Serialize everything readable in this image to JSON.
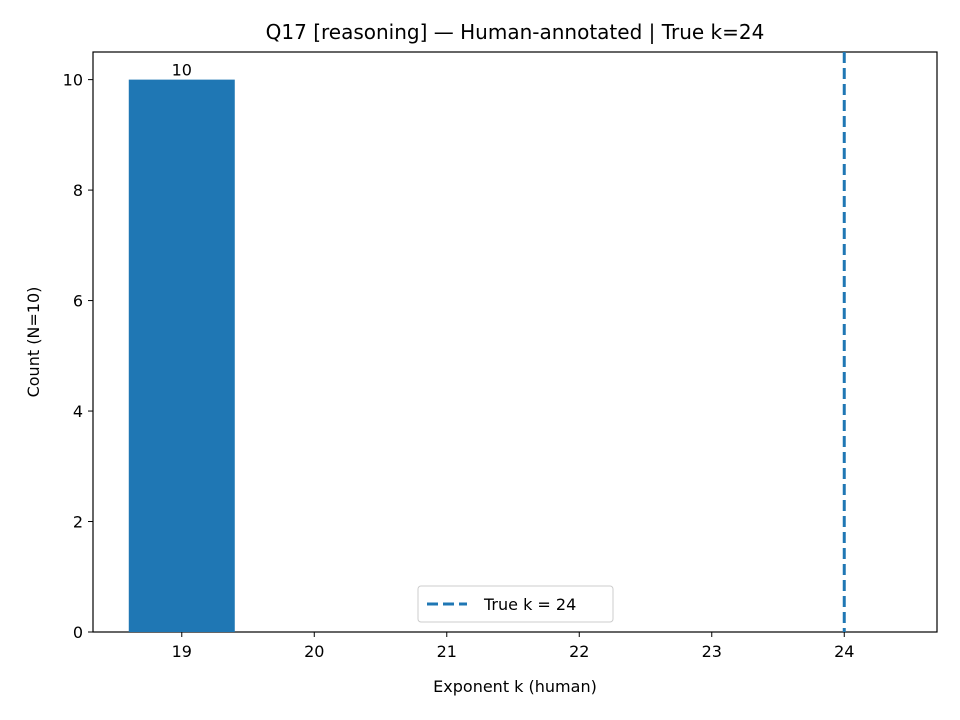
{
  "chart_data": {
    "type": "bar",
    "title": "Q17 [reasoning] — Human-annotated | True k=24",
    "xlabel": "Exponent k (human)",
    "ylabel": "Count (N=10)",
    "x_ticks": [
      "19",
      "20",
      "21",
      "22",
      "23",
      "24"
    ],
    "y_ticks": [
      "0",
      "2",
      "4",
      "6",
      "8",
      "10"
    ],
    "xlim": [
      18.33,
      24.7
    ],
    "ylim": [
      0,
      10.5
    ],
    "bars": [
      {
        "x": 19,
        "value": 10,
        "label": "10"
      }
    ],
    "bar_width": 0.8,
    "bar_color": "#1f77b4",
    "reference_line": {
      "x": 24,
      "style": "dashed",
      "color": "#1f77b4"
    },
    "legend": {
      "position": "lower center",
      "entries": [
        {
          "label": "True k = 24",
          "style": "dashed",
          "color": "#1f77b4"
        }
      ]
    },
    "grid": false
  }
}
